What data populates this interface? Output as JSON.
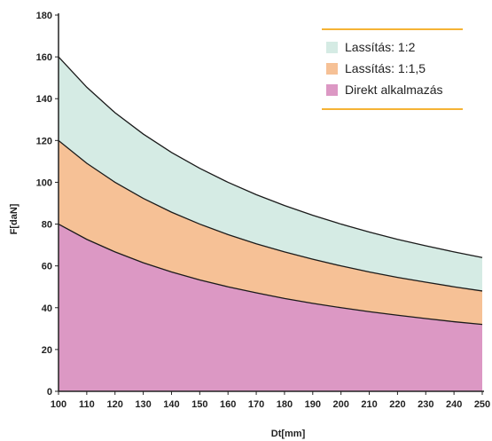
{
  "chart_data": {
    "type": "area",
    "xlabel": "Dt[mm]",
    "ylabel": "F[daN]",
    "xlim": [
      100,
      250
    ],
    "ylim": [
      0,
      180
    ],
    "x_ticks": [
      "100",
      "110",
      "120",
      "130",
      "140",
      "150",
      "160",
      "170",
      "180",
      "190",
      "200",
      "210",
      "220",
      "230",
      "240",
      "250"
    ],
    "y_ticks": [
      "0",
      "20",
      "40",
      "60",
      "80",
      "100",
      "120",
      "140",
      "160",
      "180"
    ],
    "x": [
      100,
      110,
      120,
      130,
      140,
      150,
      160,
      170,
      180,
      190,
      200,
      210,
      220,
      230,
      240,
      250
    ],
    "series": [
      {
        "name": "Lassítás: 1:2",
        "color": "#d5ebe4",
        "values": [
          160,
          145.5,
          133.3,
          123.1,
          114.3,
          106.7,
          100,
          94.1,
          88.9,
          84.2,
          80,
          76.2,
          72.7,
          69.6,
          66.7,
          64
        ]
      },
      {
        "name": "Lassítás: 1:1,5",
        "color": "#f6c196",
        "values": [
          120,
          109.1,
          100,
          92.3,
          85.7,
          80,
          75,
          70.6,
          66.7,
          63.2,
          60,
          57.1,
          54.5,
          52.2,
          50,
          48
        ]
      },
      {
        "name": "Direkt alkalmazás",
        "color": "#dc98c4",
        "values": [
          80,
          72.7,
          66.7,
          61.5,
          57.1,
          53.3,
          50,
          47.1,
          44.4,
          42.1,
          40,
          38.1,
          36.4,
          34.8,
          33.3,
          32
        ]
      }
    ],
    "legend": {
      "placement": "top-right",
      "line_color": "#f5b335"
    },
    "grid": false
  }
}
